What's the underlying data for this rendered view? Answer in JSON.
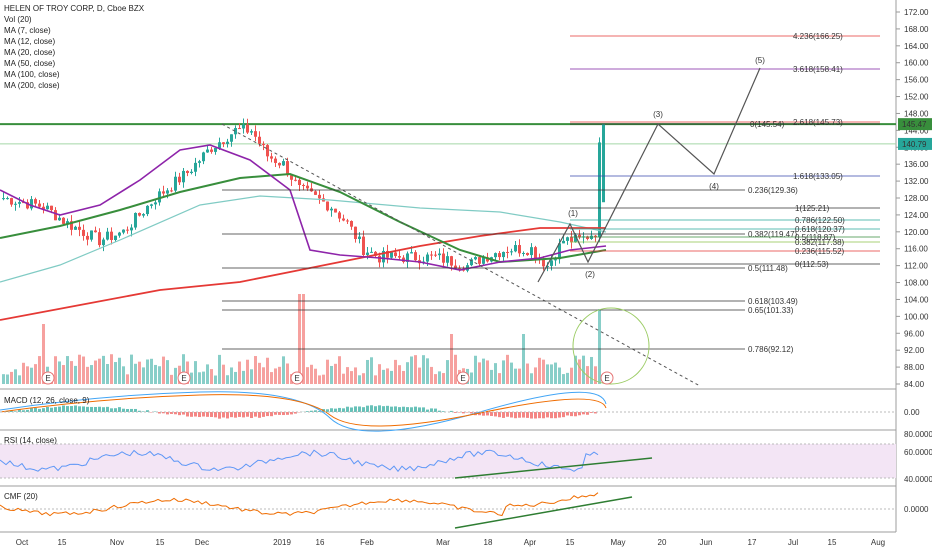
{
  "header": {
    "title": "HELEN OF TROY CORP, D, Cboe BZX",
    "indicators": [
      "Vol (20)",
      "MA (7, close)",
      "MA (12, close)",
      "MA (20, close)",
      "MA (50, close)",
      "MA (100, close)",
      "MA (200, close)"
    ]
  },
  "panes": {
    "macd": "MACD (12, 26, close, 9)",
    "rsi": "RSI (14, close)",
    "cmf": "CMF (20)"
  },
  "colors": {
    "up": "#26a69a",
    "down": "#ef5350",
    "ma_purple": "#8e24aa",
    "ma_green": "#388e3c",
    "ma_red": "#e53935",
    "ma_teal": "#80cbc4",
    "trend": "#2e7d32",
    "rsi_band": "#f3e5f5"
  },
  "price_axis": [
    "172.00",
    "168.00",
    "164.00",
    "160.00",
    "156.00",
    "152.00",
    "148.00",
    "144.00",
    "140.00",
    "136.00",
    "132.00",
    "128.00",
    "124.00",
    "120.00",
    "116.00",
    "112.00",
    "108.00",
    "104.00",
    "100.00",
    "96.00",
    "92.00",
    "88.00",
    "84.00"
  ],
  "price_badges": [
    {
      "value": "145.47",
      "bg": "#388e3c"
    },
    {
      "value": "140.79",
      "bg": "#26a69a"
    }
  ],
  "macd_axis": [
    "0.00"
  ],
  "rsi_axis": [
    "80.0000",
    "60.0000",
    "40.0000"
  ],
  "cmf_axis": [
    "0.0000"
  ],
  "time_axis": [
    "Oct",
    "15",
    "Nov",
    "15",
    "Dec",
    "2019",
    "16",
    "Feb",
    "Mar",
    "18",
    "Apr",
    "15",
    "May",
    "20",
    "Jun",
    "17",
    "Jul",
    "15",
    "Aug"
  ],
  "fib_lower": [
    {
      "label": "0.236(129.36)"
    },
    {
      "label": "0.382(119.47)"
    },
    {
      "label": "0.5(111.48)"
    },
    {
      "label": "0.618(103.49)"
    },
    {
      "label": "0.65(101.33)"
    },
    {
      "label": "0.786(92.12)"
    }
  ],
  "fib_upper": [
    {
      "label": "4.236(166.25)"
    },
    {
      "label": "3.618(158.41)"
    },
    {
      "label": "2.618(145.73)"
    },
    {
      "label": "0(145.54)"
    },
    {
      "label": "1.618(133.05)"
    },
    {
      "label": "1(125.21)"
    },
    {
      "label": "0.786(122.50)"
    },
    {
      "label": "0.618(120.37)"
    },
    {
      "label": "0.5(118.87)"
    },
    {
      "label": "0.382(117.38)"
    },
    {
      "label": "0.236(115.52)"
    },
    {
      "label": "0(112.53)"
    }
  ],
  "waves": [
    "(1)",
    "(2)",
    "(3)",
    "(4)",
    "(5)"
  ],
  "earnings_marker": "E",
  "chart_data": {
    "type": "candlestick",
    "series": [
      {
        "name": "HELEN OF TROY CORP"
      }
    ],
    "ylim": [
      84,
      172
    ],
    "x_ticks": [
      "Oct",
      "15",
      "Nov",
      "15",
      "Dec",
      "2019",
      "16",
      "Feb",
      "Mar",
      "18",
      "Apr",
      "15",
      "May",
      "20",
      "Jun",
      "17",
      "Jul",
      "15",
      "Aug"
    ],
    "last_close": 140.79,
    "resistance": 145.47,
    "grid": false
  }
}
